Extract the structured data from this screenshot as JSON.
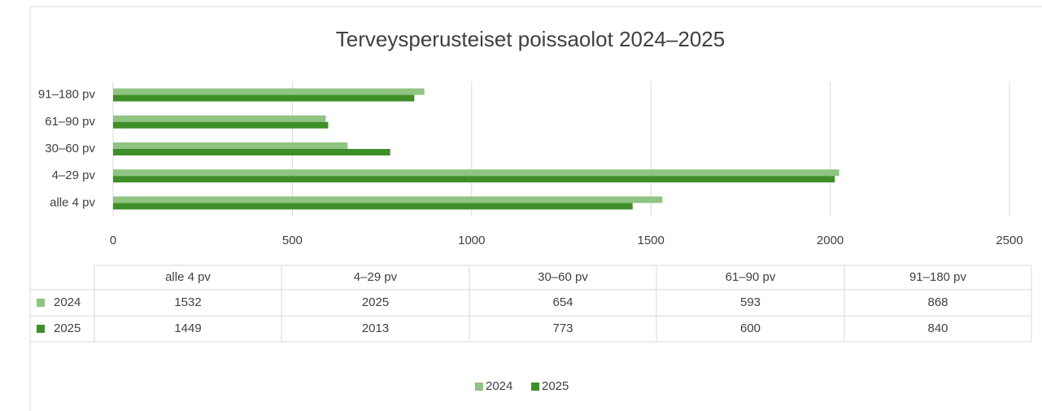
{
  "chart_data": {
    "type": "bar",
    "orientation": "horizontal",
    "title": "Terveysperusteiset poissaolot 2024–2025",
    "categories": [
      "alle 4 pv",
      "4–29 pv",
      "30–60 pv",
      "61–90 pv",
      "91–180 pv"
    ],
    "series": [
      {
        "name": "2024",
        "color": "#8fc482",
        "values": [
          1532,
          2025,
          654,
          593,
          868
        ]
      },
      {
        "name": "2025",
        "color": "#3f8f29",
        "values": [
          1449,
          2013,
          773,
          600,
          840
        ]
      }
    ],
    "xlim": [
      0,
      2500
    ],
    "xticks": [
      0,
      500,
      1000,
      1500,
      2000,
      2500
    ],
    "grid": true,
    "data_table": true,
    "legend": "bottom"
  }
}
